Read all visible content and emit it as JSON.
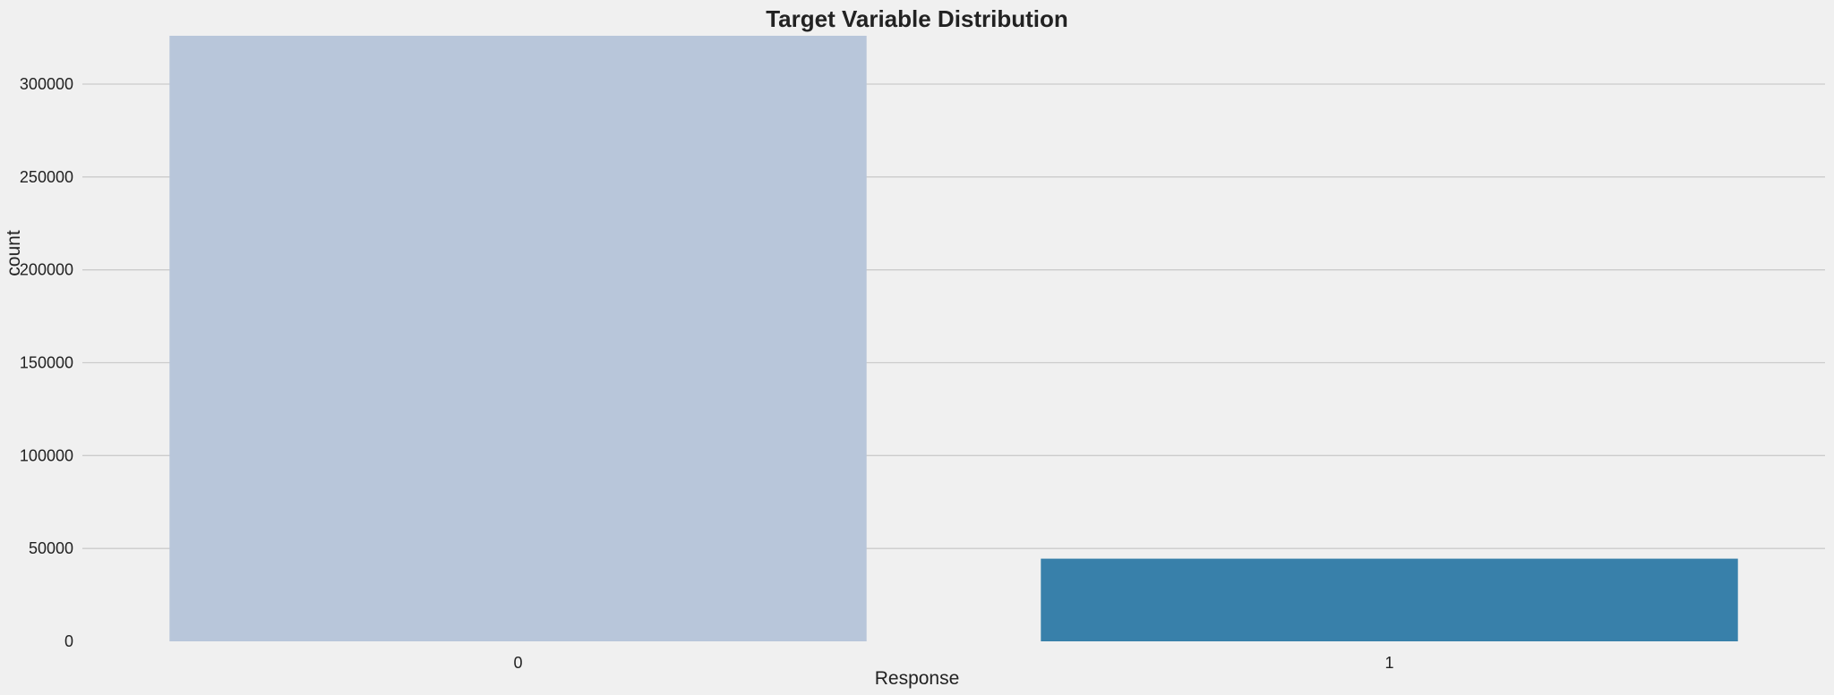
{
  "chart_data": {
    "type": "bar",
    "title": "Target Variable Distribution",
    "xlabel": "Response",
    "ylabel": "count",
    "categories": [
      "0",
      "1"
    ],
    "values": [
      326000,
      44500
    ],
    "colors": [
      "#b8c6da",
      "#3880aa"
    ],
    "ylim": [
      0,
      326000
    ],
    "yticks": [
      0,
      50000,
      100000,
      150000,
      200000,
      250000,
      300000
    ],
    "ytick_labels": [
      "0",
      "50000",
      "100000",
      "150000",
      "200000",
      "250000",
      "300000"
    ],
    "grid": true,
    "grid_axis": "y",
    "background": "#f0f0f0",
    "grid_color": "#cbcbcb"
  }
}
